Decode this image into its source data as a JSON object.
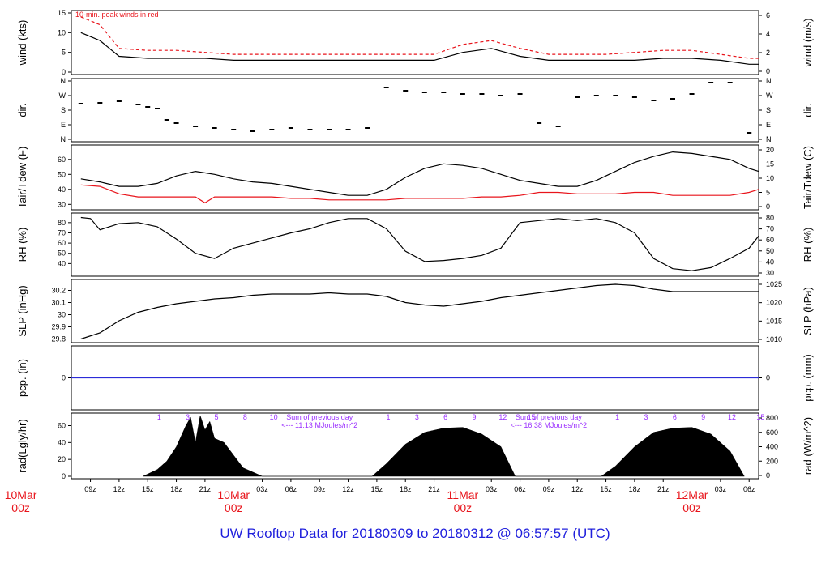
{
  "footer_title": "UW Rooftop Data for 20180309  to  20180312 @ 06:57:57  (UTC)",
  "colors": {
    "black": "#000000",
    "red": "#e8141b",
    "blue": "#2b2bd8",
    "purple": "#9b30ff",
    "title_blue": "#1f1fdc"
  },
  "chart_data": [
    {
      "type": "line",
      "panel": "wind",
      "ylabel": "wind (kts)",
      "ylabel_right": "wind (m/s)",
      "yticks": [
        0,
        5,
        10,
        15
      ],
      "yticks_right": [
        0,
        2,
        4,
        6
      ],
      "ylim": [
        0,
        15
      ],
      "annotation": "10-min. peak winds in red",
      "series": [
        {
          "color": "#000000",
          "x": [
            8,
            9,
            10,
            11,
            12,
            15,
            18,
            21,
            24,
            27,
            30,
            33,
            36,
            39,
            42,
            45,
            48,
            51,
            54,
            57,
            60,
            63,
            66,
            69,
            72,
            75,
            78,
            79
          ],
          "values": [
            10,
            9,
            8,
            6,
            4,
            3.5,
            3.5,
            3.5,
            3,
            3,
            3,
            3,
            3,
            3,
            3,
            3,
            5,
            6,
            4,
            3,
            3,
            3,
            3,
            3.5,
            3.5,
            3,
            2,
            2
          ]
        },
        {
          "color": "#e8141b",
          "x": [
            8,
            9,
            10,
            11,
            12,
            15,
            18,
            21,
            24,
            27,
            30,
            33,
            36,
            39,
            42,
            45,
            48,
            51,
            54,
            57,
            60,
            63,
            66,
            69,
            72,
            75,
            78,
            79
          ],
          "values": [
            14,
            13,
            12,
            9,
            6,
            5.5,
            5.5,
            5,
            4.5,
            4.5,
            4.5,
            4.5,
            4.5,
            4.5,
            4.5,
            4.5,
            7,
            8,
            6,
            4.5,
            4.5,
            4.5,
            5,
            5.5,
            5.5,
            4.5,
            3.5,
            3.5
          ]
        }
      ]
    },
    {
      "type": "scatter",
      "panel": "direction",
      "ylabel": "dir.",
      "ylabel_right": "dir.",
      "yticks": [
        "N",
        "E",
        "S",
        "W",
        "N"
      ],
      "ylim": [
        0,
        360
      ],
      "series": [
        {
          "color": "#000000",
          "x": [
            8,
            10,
            12,
            14,
            15,
            16,
            17,
            18,
            20,
            22,
            24,
            26,
            28,
            30,
            32,
            34,
            36,
            38,
            40,
            42,
            44,
            46,
            48,
            50,
            52,
            54,
            56,
            58,
            60,
            62,
            64,
            66,
            68,
            70,
            72,
            74,
            76,
            78
          ],
          "values": [
            220,
            225,
            235,
            215,
            200,
            190,
            120,
            100,
            80,
            70,
            60,
            50,
            60,
            70,
            60,
            60,
            60,
            70,
            320,
            300,
            290,
            290,
            280,
            280,
            270,
            280,
            100,
            80,
            260,
            270,
            270,
            260,
            240,
            250,
            280,
            350,
            350,
            40
          ]
        }
      ]
    },
    {
      "type": "line",
      "panel": "temperature",
      "ylabel": "Tair/Tdew (F)",
      "ylabel_right": "Tair/Tdew (C)",
      "yticks": [
        30,
        40,
        50,
        60
      ],
      "yticks_right": [
        0,
        5,
        10,
        15,
        20
      ],
      "ylim": [
        28,
        68
      ],
      "series": [
        {
          "color": "#000000",
          "x": [
            8,
            10,
            12,
            14,
            16,
            18,
            20,
            22,
            24,
            26,
            28,
            30,
            32,
            34,
            36,
            38,
            40,
            42,
            44,
            46,
            48,
            50,
            52,
            54,
            56,
            58,
            60,
            62,
            64,
            66,
            68,
            70,
            72,
            74,
            76,
            78,
            79
          ],
          "values": [
            47,
            45,
            42,
            42,
            44,
            49,
            52,
            50,
            47,
            45,
            44,
            42,
            40,
            38,
            36,
            36,
            40,
            48,
            54,
            57,
            56,
            54,
            50,
            46,
            44,
            42,
            42,
            46,
            52,
            58,
            62,
            65,
            64,
            62,
            60,
            54,
            52
          ]
        },
        {
          "color": "#e8141b",
          "x": [
            8,
            10,
            12,
            14,
            16,
            18,
            20,
            21,
            22,
            24,
            26,
            28,
            30,
            32,
            34,
            36,
            38,
            40,
            42,
            44,
            46,
            48,
            50,
            52,
            54,
            56,
            58,
            60,
            62,
            64,
            66,
            68,
            70,
            72,
            74,
            76,
            78,
            79
          ],
          "values": [
            43,
            42,
            37,
            35,
            35,
            35,
            35,
            31,
            35,
            35,
            35,
            35,
            34,
            34,
            33,
            33,
            33,
            33,
            34,
            34,
            34,
            34,
            35,
            35,
            36,
            38,
            38,
            37,
            37,
            37,
            38,
            38,
            36,
            36,
            36,
            36,
            38,
            40
          ]
        }
      ]
    },
    {
      "type": "line",
      "panel": "rh",
      "ylabel": "RH (%)",
      "ylabel_right": "RH (%)",
      "yticks": [
        40,
        50,
        60,
        70,
        80
      ],
      "yticks_right": [
        30,
        40,
        50,
        60,
        70,
        80
      ],
      "ylim": [
        30,
        87
      ],
      "series": [
        {
          "color": "#000000",
          "x": [
            8,
            9,
            10,
            12,
            14,
            16,
            18,
            20,
            22,
            24,
            26,
            28,
            30,
            32,
            34,
            36,
            38,
            40,
            42,
            44,
            46,
            48,
            50,
            52,
            54,
            56,
            58,
            60,
            62,
            64,
            66,
            68,
            70,
            72,
            74,
            76,
            78,
            79
          ],
          "values": [
            85,
            84,
            73,
            79,
            80,
            76,
            64,
            50,
            45,
            55,
            60,
            65,
            70,
            74,
            80,
            84,
            84,
            74,
            52,
            42,
            43,
            45,
            48,
            55,
            80,
            82,
            84,
            82,
            84,
            80,
            70,
            45,
            35,
            33,
            36,
            45,
            55,
            67
          ]
        }
      ]
    },
    {
      "type": "line",
      "panel": "pressure",
      "ylabel": "SLP (inHg)",
      "ylabel_right": "SLP (hPa)",
      "yticks": [
        29.8,
        29.9,
        30.0,
        30.1,
        30.2
      ],
      "yticks_right": [
        1010,
        1015,
        1020,
        1025
      ],
      "ylim": [
        29.79,
        30.27
      ],
      "series": [
        {
          "color": "#000000",
          "x": [
            8,
            10,
            12,
            14,
            16,
            18,
            20,
            22,
            24,
            26,
            28,
            30,
            32,
            34,
            36,
            38,
            40,
            42,
            44,
            46,
            48,
            50,
            52,
            54,
            56,
            58,
            60,
            62,
            64,
            66,
            68,
            70,
            72,
            74,
            76,
            78,
            79
          ],
          "values": [
            29.8,
            29.85,
            29.95,
            30.02,
            30.06,
            30.09,
            30.11,
            30.13,
            30.14,
            30.16,
            30.17,
            30.17,
            30.17,
            30.18,
            30.17,
            30.17,
            30.15,
            30.1,
            30.08,
            30.07,
            30.09,
            30.11,
            30.14,
            30.16,
            30.18,
            30.2,
            30.22,
            30.24,
            30.25,
            30.24,
            30.21,
            30.19,
            30.19,
            30.19,
            30.19,
            30.19,
            30.19
          ]
        }
      ]
    },
    {
      "type": "line",
      "panel": "precipitation",
      "ylabel": "pcp. (in)",
      "ylabel_right": "pcp. (mm)",
      "yticks": [
        0
      ],
      "yticks_right": [
        0
      ],
      "ylim": [
        -1,
        1
      ],
      "series": [
        {
          "color": "#2b2bd8",
          "x": [
            7,
            79
          ],
          "values": [
            0,
            0
          ]
        }
      ]
    },
    {
      "type": "area",
      "panel": "radiation",
      "ylabel": "rad(Lgly/hr)",
      "ylabel_right": "rad (W/m^2)",
      "yticks": [
        0,
        20,
        40,
        60
      ],
      "yticks_right": [
        0,
        200,
        400,
        600,
        800
      ],
      "ylim": [
        0,
        72
      ],
      "local_hour_labels": [
        [
          "1",
          "3",
          "5",
          "8",
          "10"
        ],
        [
          "1",
          "3",
          "6",
          "9",
          "12",
          "15"
        ],
        [
          "1",
          "3",
          "6",
          "9",
          "12",
          "15"
        ]
      ],
      "daily_sums": [
        {
          "line1": "Sum of previous day",
          "line2": "<--- 11.13 MJoules/m^2"
        },
        {
          "line1": "Sum of previous day",
          "line2": "<--- 16.38 MJoules/m^2"
        }
      ],
      "series": [
        {
          "color": "#000000",
          "x": [
            14.5,
            16,
            17,
            18,
            19,
            19.5,
            20,
            20.5,
            21,
            21.5,
            22,
            23,
            24,
            25,
            26,
            27,
            38.5,
            40,
            42,
            44,
            46,
            48,
            50,
            52,
            53.5,
            62.5,
            64,
            66,
            68,
            70,
            72,
            74,
            76,
            77.5
          ],
          "values": [
            0,
            8,
            18,
            35,
            60,
            70,
            40,
            72,
            55,
            65,
            45,
            40,
            25,
            10,
            5,
            0,
            0,
            15,
            38,
            52,
            57,
            58,
            50,
            35,
            0,
            0,
            12,
            35,
            52,
            57,
            58,
            50,
            30,
            0
          ]
        }
      ]
    }
  ],
  "x_axis": {
    "hour_ticks": [
      "09z",
      "12z",
      "15z",
      "18z",
      "21z",
      "03z",
      "06z",
      "09z",
      "12z",
      "15z",
      "18z",
      "21z",
      "03z",
      "06z",
      "09z",
      "12z",
      "15z",
      "18z",
      "21z",
      "03z",
      "06z"
    ],
    "day_labels": [
      {
        "date": "10Mar",
        "time": "00z"
      },
      {
        "date": "10Mar",
        "time": "00z"
      },
      {
        "date": "11Mar",
        "time": "00z"
      },
      {
        "date": "12Mar",
        "time": "00z"
      }
    ]
  }
}
